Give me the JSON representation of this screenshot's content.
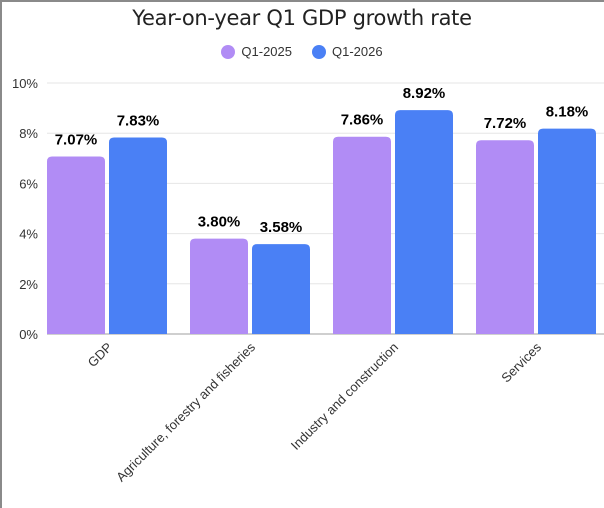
{
  "chart_data": {
    "type": "bar",
    "title": "Year-on-year Q1 GDP growth rate",
    "categories": [
      "GDP",
      "Agriculture, forestry and fisheries",
      "Industry and construction",
      "Services"
    ],
    "series": [
      {
        "name": "Q1-2025",
        "values": [
          7.07,
          3.8,
          7.86,
          7.72
        ],
        "labels": [
          "7.07%",
          "3.80%",
          "7.86%",
          "7.72%"
        ],
        "color": "#b18cf5"
      },
      {
        "name": "Q1-2026",
        "values": [
          7.83,
          3.58,
          8.92,
          8.18
        ],
        "labels": [
          "7.83%",
          "3.58%",
          "8.92%",
          "8.18%"
        ],
        "color": "#4a80f5"
      }
    ],
    "ylim": [
      0,
      10
    ],
    "yticks": [
      "0%",
      "2%",
      "4%",
      "6%",
      "8%",
      "10%"
    ],
    "xlabel": "",
    "ylabel": "",
    "grid": true,
    "legend": "top-center"
  }
}
